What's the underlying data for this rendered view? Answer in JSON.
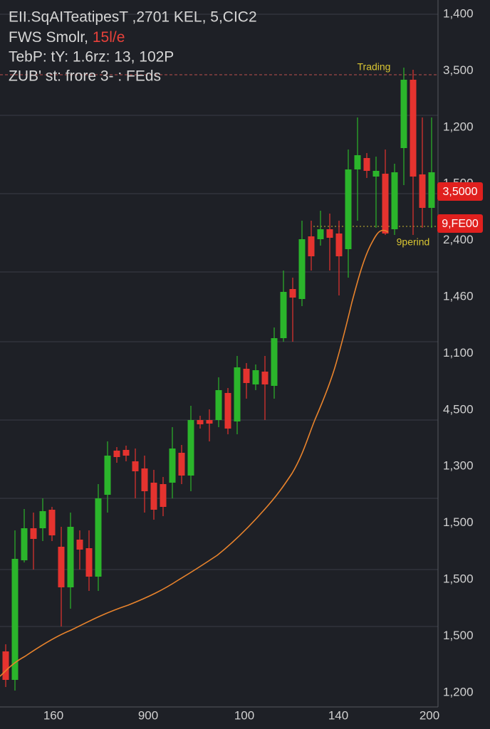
{
  "header": {
    "line1": "EII.SqAITeatipesT ,2701 KEL, 5,CIC2",
    "line2": "FWS Smolr,",
    "line2_highlight": "15l/e",
    "line3": "TebP: tY: 1.6rz: 13, 102P",
    "line4": "ZUB' st: frore  3- : FEds"
  },
  "y_axis_labels": [
    "1,400",
    "3,500",
    "1,200",
    "1,500",
    "2,400",
    "1,460",
    "1,100",
    "4,500",
    "1,300",
    "1,500",
    "1,500",
    "1,500",
    "1,200"
  ],
  "x_axis_labels": [
    "160",
    "900",
    "100",
    "140",
    "200"
  ],
  "badges": [
    "3,5000",
    "9,FE00"
  ],
  "annotations": [
    "Trading",
    "9perind"
  ]
}
